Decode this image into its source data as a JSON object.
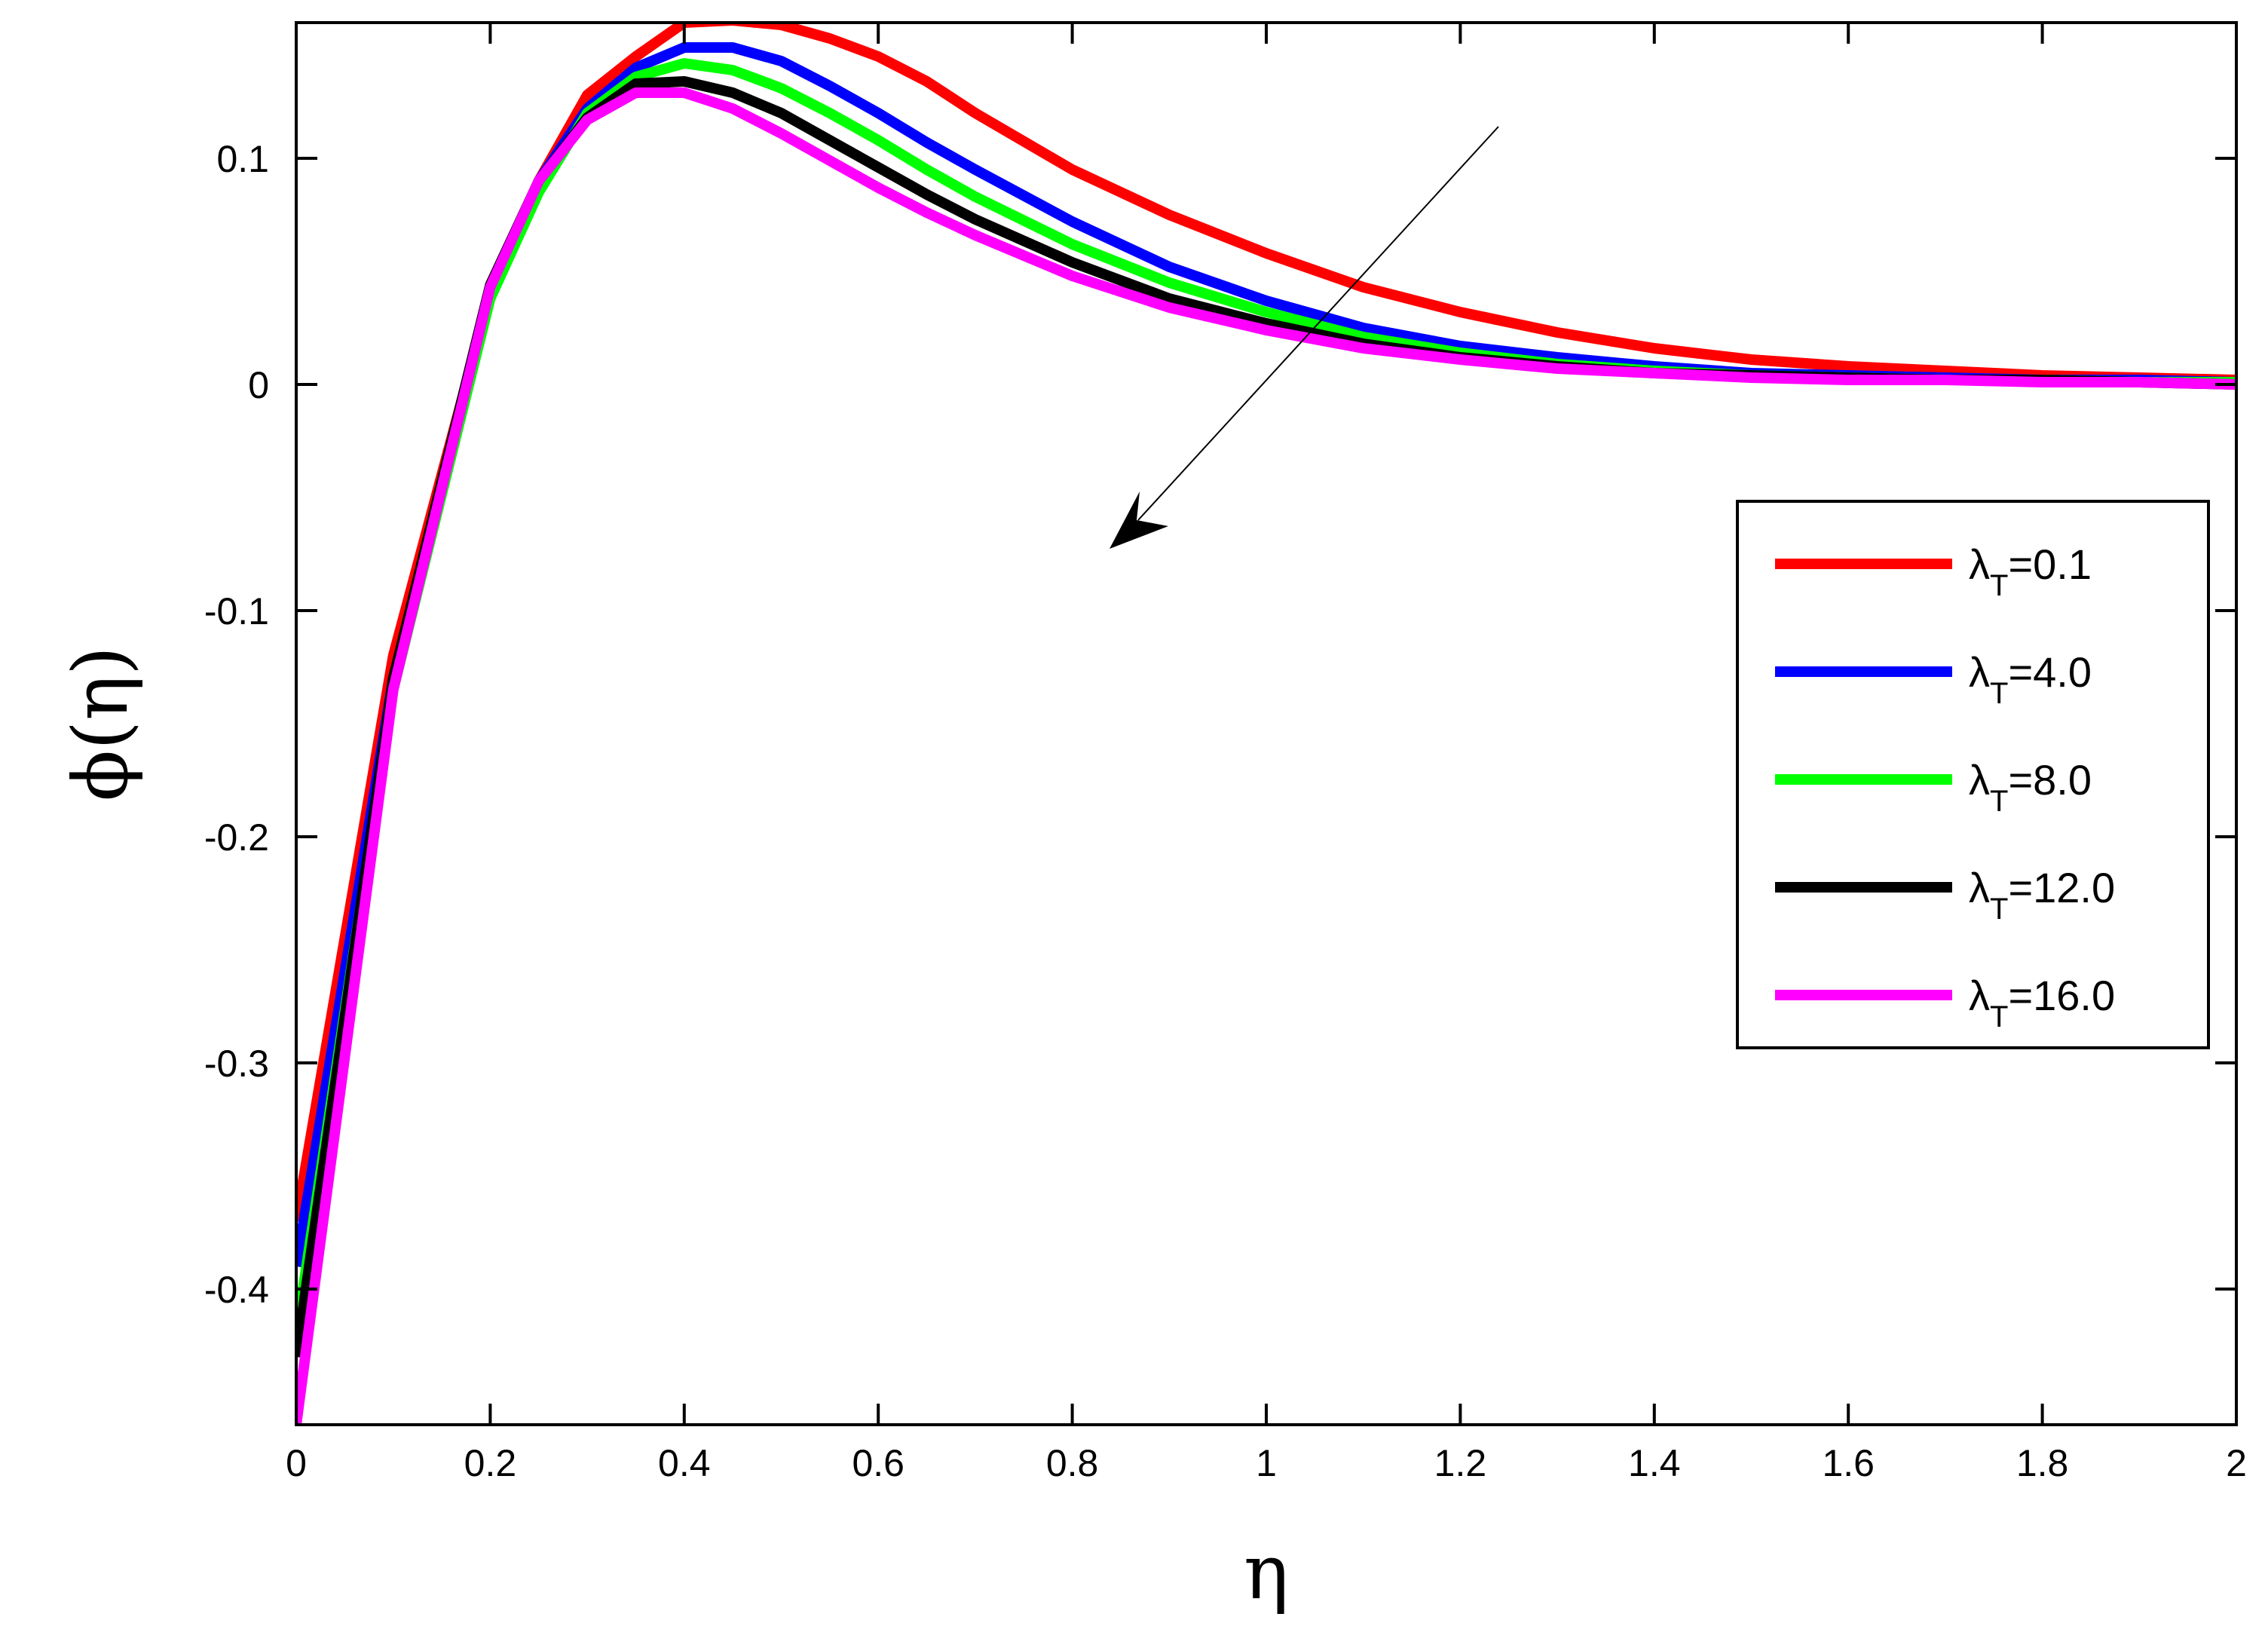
{
  "chart_data": {
    "type": "line",
    "xlabel": "η",
    "ylabel": "ϕ(η)",
    "xlim": [
      0,
      2
    ],
    "ylim": [
      -0.46,
      0.16
    ],
    "xticks": [
      "0",
      "0.2",
      "0.4",
      "0.6",
      "0.8",
      "1",
      "1.2",
      "1.4",
      "1.6",
      "1.8",
      "2"
    ],
    "yticks": [
      "-0.4",
      "-0.3",
      "-0.2",
      "-0.1",
      "0",
      "0.1"
    ],
    "ytick_values": [
      -0.4,
      -0.3,
      -0.2,
      -0.1,
      0,
      0.1
    ],
    "grid": false,
    "legend_position": "right",
    "legend_symbol": "λ",
    "legend_subscript": "T",
    "annotation": "arrow indicating decreasing trend with increasing λT",
    "series": [
      {
        "name": "λT=0.1",
        "color": "#ff0000",
        "x": [
          0,
          0.1,
          0.2,
          0.25,
          0.3,
          0.35,
          0.4,
          0.45,
          0.5,
          0.55,
          0.6,
          0.65,
          0.7,
          0.8,
          0.9,
          1.0,
          1.1,
          1.2,
          1.3,
          1.4,
          1.5,
          1.6,
          1.7,
          1.8,
          1.9,
          2.0
        ],
        "y": [
          -0.37,
          -0.12,
          0.04,
          0.09,
          0.128,
          0.145,
          0.16,
          0.161,
          0.159,
          0.153,
          0.145,
          0.134,
          0.12,
          0.095,
          0.075,
          0.058,
          0.043,
          0.032,
          0.023,
          0.016,
          0.011,
          0.008,
          0.006,
          0.004,
          0.003,
          0.002
        ]
      },
      {
        "name": "λT=4.0",
        "color": "#0000ff",
        "x": [
          0,
          0.1,
          0.2,
          0.25,
          0.3,
          0.35,
          0.4,
          0.45,
          0.5,
          0.55,
          0.6,
          0.65,
          0.7,
          0.8,
          0.9,
          1.0,
          1.1,
          1.2,
          1.3,
          1.4,
          1.5,
          1.6,
          1.7,
          1.8,
          1.9,
          2.0
        ],
        "y": [
          -0.39,
          -0.13,
          0.04,
          0.09,
          0.122,
          0.14,
          0.149,
          0.149,
          0.143,
          0.132,
          0.12,
          0.107,
          0.095,
          0.072,
          0.052,
          0.037,
          0.025,
          0.017,
          0.012,
          0.008,
          0.005,
          0.004,
          0.003,
          0.002,
          0.002,
          0.001
        ]
      },
      {
        "name": "λT=8.0",
        "color": "#00ff00",
        "x": [
          0,
          0.1,
          0.2,
          0.25,
          0.3,
          0.35,
          0.4,
          0.45,
          0.5,
          0.55,
          0.6,
          0.65,
          0.7,
          0.8,
          0.9,
          1.0,
          1.1,
          1.2,
          1.3,
          1.4,
          1.5,
          1.6,
          1.7,
          1.8,
          1.9,
          2.0
        ],
        "y": [
          -0.42,
          -0.135,
          0.038,
          0.085,
          0.12,
          0.136,
          0.142,
          0.139,
          0.131,
          0.12,
          0.108,
          0.095,
          0.083,
          0.062,
          0.045,
          0.032,
          0.021,
          0.014,
          0.009,
          0.006,
          0.004,
          0.003,
          0.002,
          0.002,
          0.001,
          0.001
        ]
      },
      {
        "name": "λT=12.0",
        "color": "#000000",
        "x": [
          0,
          0.1,
          0.2,
          0.25,
          0.3,
          0.35,
          0.4,
          0.45,
          0.5,
          0.55,
          0.6,
          0.65,
          0.7,
          0.8,
          0.9,
          1.0,
          1.1,
          1.2,
          1.3,
          1.4,
          1.5,
          1.6,
          1.7,
          1.8,
          1.9,
          2.0
        ],
        "y": [
          -0.43,
          -0.13,
          0.044,
          0.09,
          0.118,
          0.133,
          0.134,
          0.129,
          0.12,
          0.108,
          0.096,
          0.084,
          0.073,
          0.054,
          0.038,
          0.027,
          0.018,
          0.012,
          0.008,
          0.005,
          0.004,
          0.003,
          0.002,
          0.002,
          0.001,
          0.0
        ]
      },
      {
        "name": "λT=16.0",
        "color": "#ff00ff",
        "x": [
          0,
          0.1,
          0.2,
          0.25,
          0.3,
          0.35,
          0.4,
          0.45,
          0.5,
          0.55,
          0.6,
          0.65,
          0.7,
          0.8,
          0.9,
          1.0,
          1.1,
          1.2,
          1.3,
          1.4,
          1.5,
          1.6,
          1.7,
          1.8,
          1.9,
          2.0
        ],
        "y": [
          -0.46,
          -0.135,
          0.043,
          0.09,
          0.117,
          0.129,
          0.129,
          0.122,
          0.111,
          0.099,
          0.087,
          0.076,
          0.066,
          0.048,
          0.034,
          0.024,
          0.016,
          0.011,
          0.007,
          0.005,
          0.003,
          0.002,
          0.002,
          0.001,
          0.001,
          0.0
        ]
      }
    ]
  }
}
